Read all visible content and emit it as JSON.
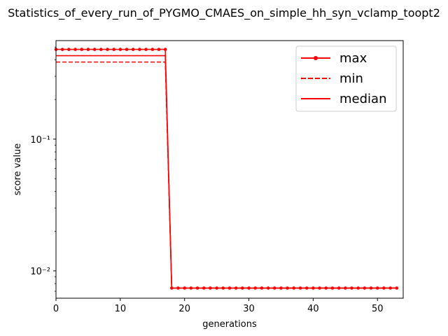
{
  "chart_data": {
    "type": "line",
    "title": "Statistics_of_every_run_of_PYGMO_CMAES_on_simple_hh_syn_vclamp_toopt2",
    "xlabel": "generations",
    "ylabel": "score value",
    "xlim": [
      0,
      54
    ],
    "ylim": [
      0.0062,
      0.56
    ],
    "yscale": "log",
    "xticks": [
      0,
      10,
      20,
      30,
      40,
      50
    ],
    "xtick_labels": [
      "0",
      "10",
      "20",
      "30",
      "40",
      "50"
    ],
    "yticks": [
      0.01,
      0.1
    ],
    "ytick_labels": [
      "10⁻²",
      "10⁻¹"
    ],
    "grid": false,
    "legend": "top-right",
    "color": "#ff0000",
    "series": [
      {
        "name": "max",
        "style": "solid-dots",
        "x": [
          0,
          1,
          2,
          3,
          4,
          5,
          6,
          7,
          8,
          9,
          10,
          11,
          12,
          13,
          14,
          15,
          16,
          17,
          18,
          19,
          20,
          21,
          22,
          23,
          24,
          25,
          26,
          27,
          28,
          29,
          30,
          31,
          32,
          33,
          34,
          35,
          36,
          37,
          38,
          39,
          40,
          41,
          42,
          43,
          44,
          45,
          46,
          47,
          48,
          49,
          50,
          51,
          52,
          53
        ],
        "values": [
          0.48,
          0.48,
          0.48,
          0.48,
          0.48,
          0.48,
          0.48,
          0.48,
          0.48,
          0.48,
          0.48,
          0.48,
          0.48,
          0.48,
          0.48,
          0.48,
          0.48,
          0.48,
          0.0074,
          0.0074,
          0.0074,
          0.0074,
          0.0074,
          0.0074,
          0.0074,
          0.0074,
          0.0074,
          0.0074,
          0.0074,
          0.0074,
          0.0074,
          0.0074,
          0.0074,
          0.0074,
          0.0074,
          0.0074,
          0.0074,
          0.0074,
          0.0074,
          0.0074,
          0.0074,
          0.0074,
          0.0074,
          0.0074,
          0.0074,
          0.0074,
          0.0074,
          0.0074,
          0.0074,
          0.0074,
          0.0074,
          0.0074,
          0.0074,
          0.0074
        ]
      },
      {
        "name": "min",
        "style": "dashed",
        "x": [
          0,
          1,
          2,
          3,
          4,
          5,
          6,
          7,
          8,
          9,
          10,
          11,
          12,
          13,
          14,
          15,
          16,
          17,
          18,
          19,
          20,
          21,
          22,
          23,
          24,
          25,
          26,
          27,
          28,
          29,
          30,
          31,
          32,
          33,
          34,
          35,
          36,
          37,
          38,
          39,
          40,
          41,
          42,
          43,
          44,
          45,
          46,
          47,
          48,
          49,
          50,
          51,
          52,
          53
        ],
        "values": [
          0.385,
          0.385,
          0.385,
          0.385,
          0.385,
          0.385,
          0.385,
          0.385,
          0.385,
          0.385,
          0.385,
          0.385,
          0.385,
          0.385,
          0.385,
          0.385,
          0.385,
          0.385,
          0.0074,
          0.0074,
          0.0074,
          0.0074,
          0.0074,
          0.0074,
          0.0074,
          0.0074,
          0.0074,
          0.0074,
          0.0074,
          0.0074,
          0.0074,
          0.0074,
          0.0074,
          0.0074,
          0.0074,
          0.0074,
          0.0074,
          0.0074,
          0.0074,
          0.0074,
          0.0074,
          0.0074,
          0.0074,
          0.0074,
          0.0074,
          0.0074,
          0.0074,
          0.0074,
          0.0074,
          0.0074,
          0.0074,
          0.0074,
          0.0074,
          0.0074
        ]
      },
      {
        "name": "median",
        "style": "solid",
        "x": [
          0,
          1,
          2,
          3,
          4,
          5,
          6,
          7,
          8,
          9,
          10,
          11,
          12,
          13,
          14,
          15,
          16,
          17,
          18,
          19,
          20,
          21,
          22,
          23,
          24,
          25,
          26,
          27,
          28,
          29,
          30,
          31,
          32,
          33,
          34,
          35,
          36,
          37,
          38,
          39,
          40,
          41,
          42,
          43,
          44,
          45,
          46,
          47,
          48,
          49,
          50,
          51,
          52,
          53
        ],
        "values": [
          0.43,
          0.43,
          0.43,
          0.43,
          0.43,
          0.43,
          0.43,
          0.43,
          0.43,
          0.43,
          0.43,
          0.43,
          0.43,
          0.43,
          0.43,
          0.43,
          0.43,
          0.43,
          0.0074,
          0.0074,
          0.0074,
          0.0074,
          0.0074,
          0.0074,
          0.0074,
          0.0074,
          0.0074,
          0.0074,
          0.0074,
          0.0074,
          0.0074,
          0.0074,
          0.0074,
          0.0074,
          0.0074,
          0.0074,
          0.0074,
          0.0074,
          0.0074,
          0.0074,
          0.0074,
          0.0074,
          0.0074,
          0.0074,
          0.0074,
          0.0074,
          0.0074,
          0.0074,
          0.0074,
          0.0074,
          0.0074,
          0.0074,
          0.0074,
          0.0074
        ]
      }
    ]
  }
}
